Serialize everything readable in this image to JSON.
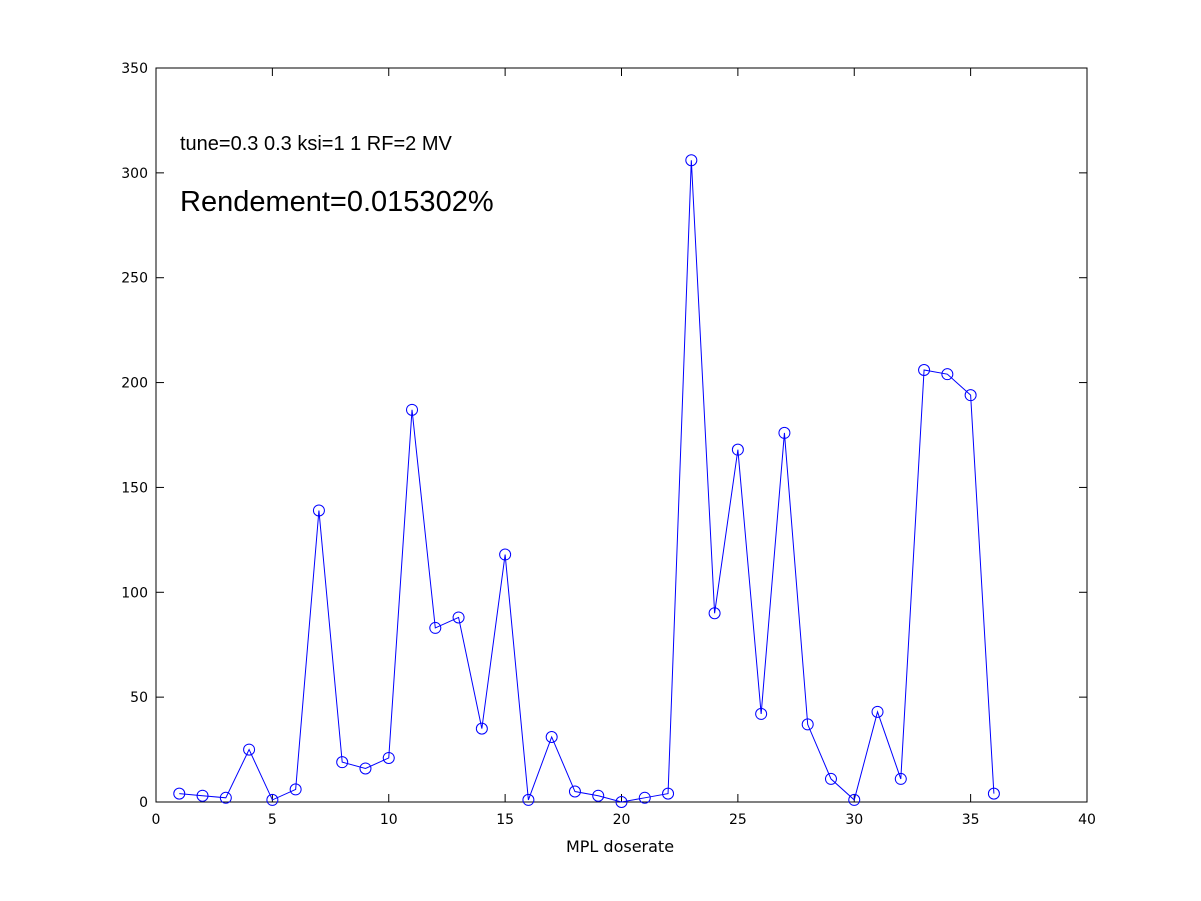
{
  "chart_data": {
    "type": "line",
    "title": "",
    "xlabel": "MPL doserate",
    "ylabel": "",
    "xlim": [
      0,
      40
    ],
    "ylim": [
      0,
      350
    ],
    "xticks": [
      0,
      5,
      10,
      15,
      20,
      25,
      30,
      35,
      40
    ],
    "yticks": [
      0,
      50,
      100,
      150,
      200,
      250,
      300,
      350
    ],
    "grid": false,
    "marker": "circle",
    "line_color": "#0000ff",
    "annotations": [
      "tune=0.3 0.3  ksi=1 1 RF=2 MV",
      "Rendement=0.015302%"
    ],
    "series": [
      {
        "x": [
          1,
          2,
          3,
          4,
          5,
          6,
          7,
          8,
          9,
          10,
          11,
          12,
          13,
          14,
          15,
          16,
          17,
          18,
          19,
          20,
          21,
          22,
          23,
          24,
          25,
          26,
          27,
          28,
          29,
          30,
          31,
          32,
          33,
          34,
          35,
          36
        ],
        "values": [
          4,
          3,
          2,
          25,
          1,
          6,
          139,
          19,
          16,
          21,
          187,
          83,
          88,
          35,
          118,
          1,
          31,
          5,
          3,
          0,
          2,
          4,
          306,
          90,
          168,
          42,
          176,
          37,
          11,
          1,
          43,
          11,
          206,
          204,
          194,
          4
        ]
      }
    ]
  }
}
